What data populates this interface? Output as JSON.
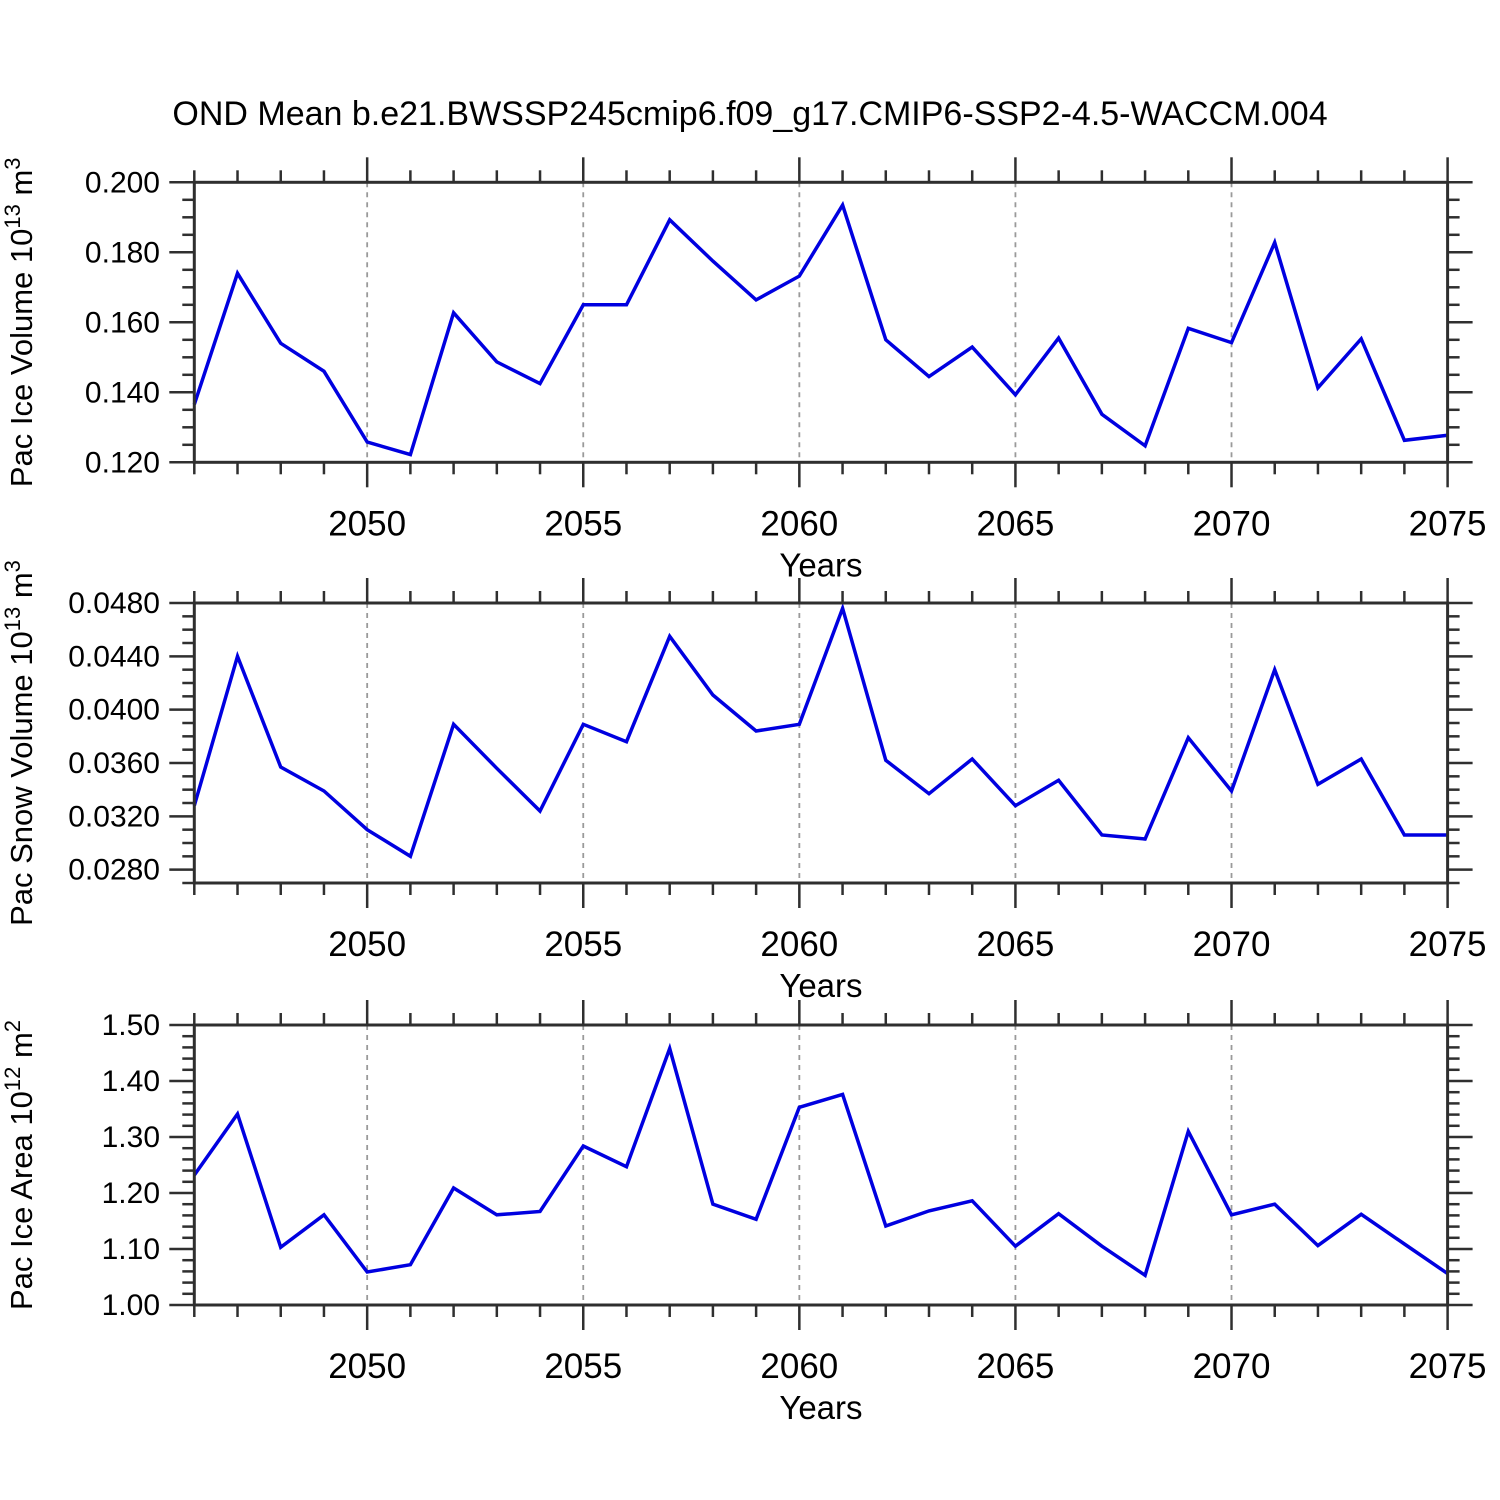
{
  "title": "OND Mean b.e21.BWSSP245cmip6.f09_g17.CMIP6-SSP2-4.5-WACCM.004",
  "colors": {
    "line": "#0000e0",
    "grid": "#9a9a9a",
    "axis": "#2f2f2f",
    "text": "#000000",
    "background": "#ffffff"
  },
  "x_axis": {
    "label": "Years",
    "start": 2046,
    "end": 2075,
    "years": [
      2046,
      2047,
      2048,
      2049,
      2050,
      2051,
      2052,
      2053,
      2054,
      2055,
      2056,
      2057,
      2058,
      2059,
      2060,
      2061,
      2062,
      2063,
      2064,
      2065,
      2066,
      2067,
      2068,
      2069,
      2070,
      2071,
      2072,
      2073,
      2074,
      2075
    ],
    "major_ticks": [
      2050,
      2055,
      2060,
      2065,
      2070,
      2075
    ],
    "tick_labels": [
      "2050",
      "2055",
      "2060",
      "2065",
      "2070",
      "2075"
    ],
    "grid_years": [
      2050,
      2055,
      2060,
      2065,
      2070
    ]
  },
  "chart_data": [
    {
      "type": "line",
      "name": "pac-ice-volume",
      "ylabel": "Pac Ice Volume 10¹³ m³",
      "ylabel_segments": [
        {
          "text": "Pac Ice Volume 10",
          "sup": false
        },
        {
          "text": "13",
          "sup": true
        },
        {
          "text": " m",
          "sup": false
        },
        {
          "text": "3",
          "sup": true
        }
      ],
      "ylim": [
        0.12,
        0.2
      ],
      "ytick_values": [
        0.12,
        0.14,
        0.16,
        0.18,
        0.2
      ],
      "ytick_labels": [
        "0.120",
        "0.140",
        "0.160",
        "0.180",
        "0.200"
      ],
      "y_minor_step": 0.005,
      "values": [
        0.1365,
        0.174,
        0.154,
        0.146,
        0.1258,
        0.1222,
        0.1627,
        0.1487,
        0.1425,
        0.165,
        0.165,
        0.1893,
        0.1775,
        0.1664,
        0.1732,
        0.1935,
        0.155,
        0.1445,
        0.1529,
        0.1393,
        0.1555,
        0.1337,
        0.1247,
        0.1583,
        0.1542,
        0.1828,
        0.1413,
        0.1553,
        0.1263,
        0.1277
      ]
    },
    {
      "type": "line",
      "name": "pac-snow-volume",
      "ylabel": "Pac Snow Volume 10¹³ m³",
      "ylabel_segments": [
        {
          "text": "Pac Snow Volume 10",
          "sup": false
        },
        {
          "text": "13",
          "sup": true
        },
        {
          "text": " m",
          "sup": false
        },
        {
          "text": "3",
          "sup": true
        }
      ],
      "ylim": [
        0.027,
        0.048
      ],
      "ytick_values": [
        0.028,
        0.032,
        0.036,
        0.04,
        0.044,
        0.048
      ],
      "ytick_labels": [
        "0.0280",
        "0.0320",
        "0.0360",
        "0.0400",
        "0.0440",
        "0.0480"
      ],
      "y_minor_step": 0.001,
      "values": [
        0.0328,
        0.044,
        0.0357,
        0.0339,
        0.031,
        0.029,
        0.0389,
        0.0356,
        0.0324,
        0.0389,
        0.0376,
        0.0455,
        0.0411,
        0.0384,
        0.0389,
        0.0476,
        0.0362,
        0.0337,
        0.0363,
        0.0328,
        0.0347,
        0.0306,
        0.0303,
        0.0379,
        0.0339,
        0.043,
        0.0344,
        0.0363,
        0.0306,
        0.0306
      ]
    },
    {
      "type": "line",
      "name": "pac-ice-area",
      "ylabel": "Pac Ice Area 10¹² m²",
      "ylabel_segments": [
        {
          "text": "Pac Ice Area 10",
          "sup": false
        },
        {
          "text": "12",
          "sup": true
        },
        {
          "text": " m",
          "sup": false
        },
        {
          "text": "2",
          "sup": true
        }
      ],
      "ylim": [
        1.0,
        1.5
      ],
      "ytick_values": [
        1.0,
        1.1,
        1.2,
        1.3,
        1.4,
        1.5
      ],
      "ytick_labels": [
        "1.00",
        "1.10",
        "1.20",
        "1.30",
        "1.40",
        "1.50"
      ],
      "y_minor_step": 0.02,
      "values": [
        1.232,
        1.341,
        1.103,
        1.161,
        1.059,
        1.072,
        1.209,
        1.161,
        1.167,
        1.284,
        1.247,
        1.458,
        1.18,
        1.153,
        1.353,
        1.376,
        1.141,
        1.168,
        1.186,
        1.105,
        1.163,
        1.105,
        1.053,
        1.31,
        1.161,
        1.18,
        1.106,
        1.162,
        1.109,
        1.056
      ]
    }
  ]
}
